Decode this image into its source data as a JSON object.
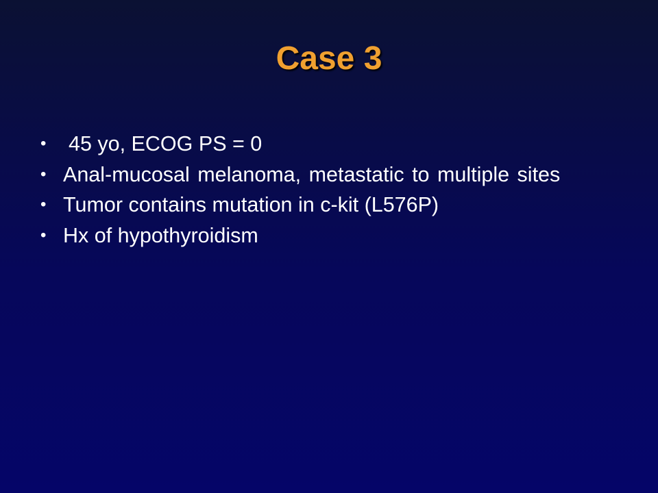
{
  "slide": {
    "title": "Case 3",
    "bullet_char": "•",
    "bullets": [
      "45 yo, ECOG PS = 0",
      "Anal-mucosal melanoma, metastatic to multiple sites",
      "Tumor contains mutation in c-kit (L576P)",
      "Hx of hypothyroidism"
    ]
  },
  "colors": {
    "background_top": "#0b1133",
    "background_bottom": "#050568",
    "title": "#f0a030",
    "text": "#ffffff"
  }
}
